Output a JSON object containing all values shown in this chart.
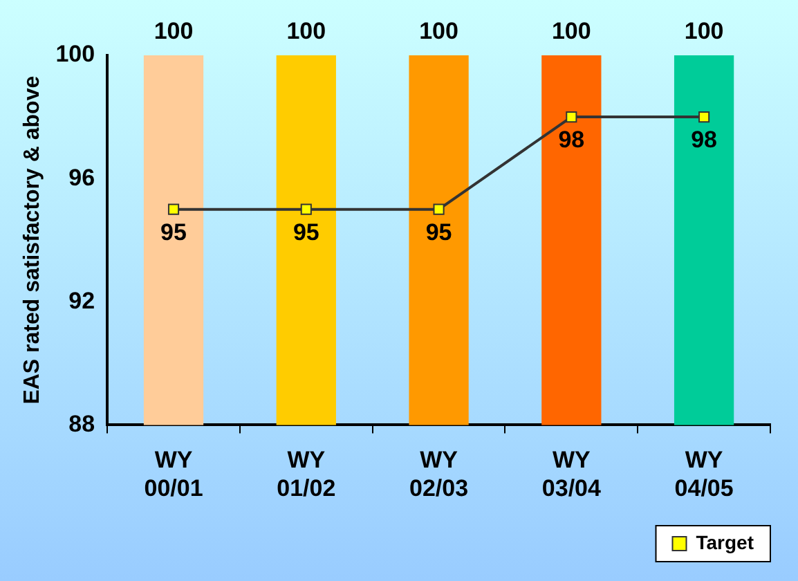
{
  "chart_data": {
    "type": "bar",
    "ylabel": "EAS rated satisfactory & above",
    "categories": [
      "WY 00/01",
      "WY 01/02",
      "WY 02/03",
      "WY 03/04",
      "WY 04/05"
    ],
    "series": [
      {
        "colors": [
          "#ffcc99",
          "#ffcc00",
          "#ff9900",
          "#ff6600",
          "#00cc99"
        ],
        "values": [
          100,
          100,
          100,
          100,
          100
        ]
      },
      {
        "type": "line",
        "name": "Target",
        "color": "#333333",
        "marker": "square",
        "line_style": "solid",
        "values": [
          95,
          95,
          95,
          98,
          98
        ]
      }
    ],
    "ylim": [
      88,
      100
    ],
    "yticks": [
      88,
      92,
      96,
      100
    ],
    "data_labels": true,
    "legend": "bottom right"
  }
}
